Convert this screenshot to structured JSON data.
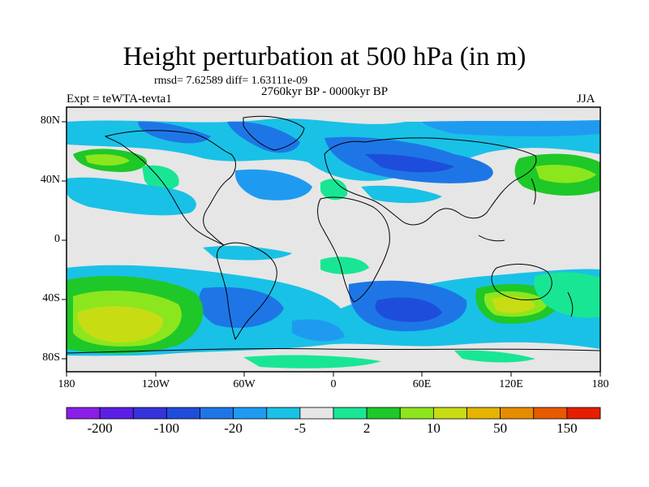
{
  "figure": {
    "title": "Height perturbation at 500 hPa (in m)",
    "stats": "rmsd= 7.62589 diff= 1.63111e-09",
    "period": "2760kyr BP - 0000kyr BP",
    "experiment": "Expt = teWTA-tevta1",
    "season": "JJA"
  },
  "axes": {
    "lat_labels": [
      "80N",
      "40N",
      "0",
      "40S",
      "80S"
    ],
    "lon_labels": [
      "180",
      "120W",
      "60W",
      "0",
      "60E",
      "120E",
      "180"
    ]
  },
  "colorbar": {
    "labels": [
      "-200",
      "-100",
      "-20",
      "-5",
      "2",
      "10",
      "50",
      "150"
    ],
    "colors": [
      "#8a1ee6",
      "#5a1ee6",
      "#3532dc",
      "#1e4ddc",
      "#1e76e6",
      "#1e9bf0",
      "#19c1e6",
      "#e6e6e6",
      "#19e694",
      "#1ec828",
      "#8ce61e",
      "#c8dc14",
      "#e6b400",
      "#e68c00",
      "#e65a00",
      "#e61e00"
    ]
  },
  "map_fields": {
    "background": "#e6e6e6",
    "coast_color": "#000000"
  }
}
